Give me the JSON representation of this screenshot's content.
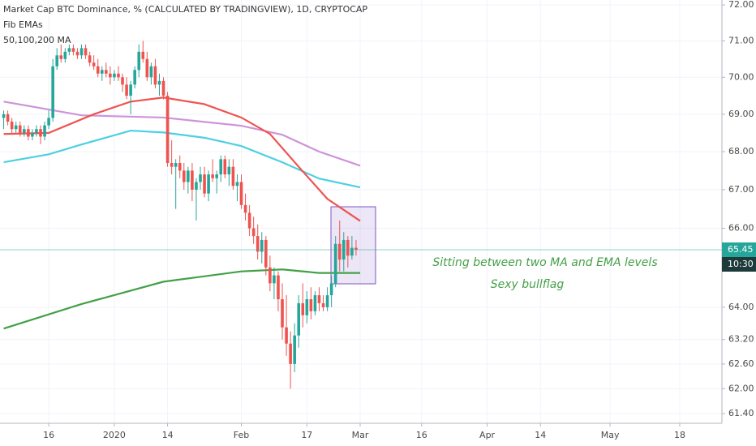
{
  "chart_data": {
    "type": "candlestick",
    "title": "Market Cap BTC Dominance, % (CALCULATED BY TRADINGVIEW), 1D, CRYPTOCAP",
    "subtitles": [
      "Fib EMAs",
      "50,100,200 MA"
    ],
    "annotations": [
      "Sitting between two MA and EMA levels",
      "Sexy bullflag"
    ],
    "countdown": "10:30",
    "log_scale": true,
    "grid": true,
    "up_color": "#26a69a",
    "down_color": "#ef5350",
    "price_line_color": "#26a69a",
    "xlim": [
      -27.9,
      148.3
    ],
    "xticks": [
      {
        "value": -16,
        "label": "16"
      },
      {
        "value": 0,
        "label": "2020"
      },
      {
        "value": 13,
        "label": "14"
      },
      {
        "value": 31,
        "label": "Feb"
      },
      {
        "value": 47,
        "label": "17"
      },
      {
        "value": 60,
        "label": "Mar"
      },
      {
        "value": 75,
        "label": "16"
      },
      {
        "value": 91,
        "label": "Apr"
      },
      {
        "value": 104,
        "label": "14"
      },
      {
        "value": 121,
        "label": "May"
      },
      {
        "value": 138,
        "label": "18"
      }
    ],
    "ylim": [
      61.17,
      72.14
    ],
    "yticks": [
      {
        "value": 72,
        "label": "72.00"
      },
      {
        "value": 71,
        "label": "71.00"
      },
      {
        "value": 70,
        "label": "70.00"
      },
      {
        "value": 69,
        "label": "69.00"
      },
      {
        "value": 68,
        "label": "68.00"
      },
      {
        "value": 67,
        "label": "67.00"
      },
      {
        "value": 66,
        "label": "66.00"
      },
      {
        "value": 64,
        "label": "64.00"
      },
      {
        "value": 63.2,
        "label": "63.20"
      },
      {
        "value": 62.6,
        "label": "62.60"
      },
      {
        "value": 62,
        "label": "62.00"
      },
      {
        "value": 61.4,
        "label": "61.40"
      }
    ],
    "x": [
      -27,
      -26,
      -25,
      -24,
      -23,
      -22,
      -21,
      -20,
      -19,
      -18,
      -17,
      -16,
      -15,
      -14,
      -13,
      -12,
      -11,
      -10,
      -9,
      -8,
      -7,
      -6,
      -5,
      -4,
      -3,
      -2,
      -1,
      0,
      1,
      2,
      3,
      4,
      5,
      6,
      7,
      8,
      9,
      10,
      11,
      12,
      13,
      14,
      15,
      16,
      17,
      18,
      19,
      20,
      21,
      22,
      23,
      24,
      25,
      26,
      27,
      28,
      29,
      30,
      31,
      32,
      33,
      34,
      35,
      36,
      37,
      38,
      39,
      40,
      41,
      42,
      43,
      44,
      45,
      46,
      47,
      48,
      49,
      50,
      51,
      52,
      53,
      54,
      55,
      56,
      57,
      58,
      59
    ],
    "open": [
      68.9,
      69.0,
      68.8,
      68.6,
      68.7,
      68.5,
      68.6,
      68.4,
      68.5,
      68.6,
      68.4,
      68.7,
      68.9,
      70.3,
      70.6,
      70.5,
      70.7,
      70.8,
      70.7,
      70.6,
      70.8,
      70.6,
      70.4,
      70.3,
      70.1,
      70.2,
      70.1,
      70.0,
      70.1,
      70.0,
      69.8,
      69.5,
      69.8,
      70.2,
      70.7,
      70.5,
      70.0,
      70.3,
      69.8,
      69.9,
      69.5,
      67.7,
      67.6,
      67.7,
      67.5,
      67.2,
      67.5,
      67.0,
      67.2,
      67.4,
      66.9,
      67.4,
      67.3,
      67.4,
      67.8,
      67.4,
      67.6,
      67.1,
      67.2,
      66.6,
      66.4,
      66.0,
      65.8,
      65.4,
      65.7,
      65.0,
      64.6,
      64.8,
      64.2,
      63.5,
      63.1,
      62.6,
      63.3,
      64.1,
      63.8,
      64.2,
      63.9,
      64.3,
      64.1,
      64.0,
      64.3,
      64.6,
      65.6,
      65.2,
      65.7,
      65.3,
      65.5
    ],
    "high": [
      69.1,
      69.1,
      68.9,
      68.8,
      68.8,
      68.7,
      68.7,
      68.6,
      68.7,
      68.7,
      68.8,
      69.1,
      70.5,
      70.8,
      70.9,
      70.8,
      70.9,
      70.9,
      70.8,
      70.9,
      70.9,
      70.7,
      70.6,
      70.5,
      70.3,
      70.4,
      70.3,
      70.2,
      70.3,
      70.1,
      70.0,
      69.9,
      70.3,
      70.9,
      71.0,
      70.7,
      70.4,
      70.5,
      70.1,
      70.0,
      69.6,
      68.3,
      67.8,
      67.9,
      67.7,
      67.6,
      67.7,
      67.3,
      67.6,
      67.6,
      67.5,
      67.8,
      67.5,
      67.9,
      67.9,
      67.8,
      67.8,
      67.4,
      67.4,
      66.9,
      66.6,
      66.3,
      66.1,
      65.9,
      65.8,
      65.3,
      65.0,
      64.9,
      64.6,
      64.3,
      63.4,
      63.6,
      64.3,
      64.6,
      64.4,
      64.5,
      64.4,
      64.5,
      64.3,
      64.5,
      64.8,
      65.8,
      66.2,
      65.9,
      65.8,
      65.8,
      65.7
    ],
    "low": [
      68.6,
      68.7,
      68.5,
      68.5,
      68.4,
      68.4,
      68.3,
      68.3,
      68.4,
      68.2,
      68.3,
      68.6,
      68.8,
      70.2,
      70.4,
      70.4,
      70.6,
      70.6,
      70.5,
      70.5,
      70.5,
      70.3,
      70.2,
      70.0,
      69.9,
      70.0,
      69.8,
      69.9,
      69.9,
      69.6,
      69.4,
      69.0,
      69.7,
      70.0,
      70.4,
      69.9,
      69.8,
      69.7,
      69.5,
      69.4,
      67.6,
      67.4,
      66.5,
      67.3,
      67.0,
      66.9,
      66.7,
      66.2,
      67.0,
      66.8,
      66.7,
      67.2,
      66.9,
      67.2,
      67.3,
      67.1,
      67.0,
      66.7,
      66.5,
      66.2,
      65.8,
      65.6,
      65.2,
      65.1,
      64.8,
      64.4,
      64.2,
      63.9,
      63.2,
      62.8,
      62.0,
      62.4,
      63.0,
      63.5,
      63.6,
      63.7,
      63.8,
      63.9,
      63.9,
      63.9,
      64.0,
      64.5,
      64.9,
      64.9,
      65.0,
      65.2,
      65.3
    ],
    "close": [
      69.0,
      68.8,
      68.6,
      68.7,
      68.5,
      68.6,
      68.4,
      68.5,
      68.6,
      68.4,
      68.7,
      68.9,
      70.3,
      70.6,
      70.5,
      70.7,
      70.8,
      70.7,
      70.6,
      70.8,
      70.6,
      70.4,
      70.3,
      70.1,
      70.2,
      70.1,
      70.0,
      70.1,
      70.0,
      69.8,
      69.5,
      69.8,
      70.2,
      70.7,
      70.5,
      70.0,
      70.3,
      69.8,
      69.9,
      69.5,
      67.7,
      67.6,
      67.7,
      67.5,
      67.2,
      67.5,
      67.0,
      67.2,
      67.4,
      66.9,
      67.4,
      67.3,
      67.4,
      67.8,
      67.4,
      67.6,
      67.1,
      67.2,
      66.6,
      66.4,
      66.0,
      65.8,
      65.4,
      65.7,
      65.0,
      64.6,
      64.8,
      64.2,
      63.5,
      63.1,
      62.6,
      63.3,
      64.1,
      63.8,
      64.2,
      63.9,
      64.3,
      64.1,
      64.0,
      64.3,
      64.6,
      65.6,
      65.2,
      65.7,
      65.3,
      65.5,
      65.45
    ],
    "lines": [
      {
        "color": "#ce93d8",
        "x": [
          -27,
          -8,
          12,
          31,
          41,
          50,
          60
        ],
        "values": [
          69.34,
          68.97,
          68.91,
          68.69,
          68.45,
          68.0,
          67.63
        ]
      },
      {
        "color": "#4dd0e1",
        "x": [
          -27,
          -16,
          -8,
          4,
          12,
          22,
          31,
          41,
          50,
          60
        ],
        "values": [
          67.72,
          67.93,
          68.19,
          68.56,
          68.51,
          68.37,
          68.15,
          67.72,
          67.29,
          67.06
        ]
      },
      {
        "color": "#ef5350",
        "x": [
          -27,
          -16,
          -5,
          4,
          12,
          22,
          31,
          38,
          45,
          52,
          60
        ],
        "values": [
          68.47,
          68.5,
          69.0,
          69.34,
          69.45,
          69.27,
          68.91,
          68.47,
          67.6,
          66.76,
          66.19
        ]
      },
      {
        "color": "#43a047",
        "x": [
          -27,
          -8,
          12,
          31,
          41,
          50,
          60
        ],
        "values": [
          63.47,
          64.08,
          64.64,
          64.9,
          64.95,
          64.86,
          64.86
        ]
      }
    ]
  }
}
